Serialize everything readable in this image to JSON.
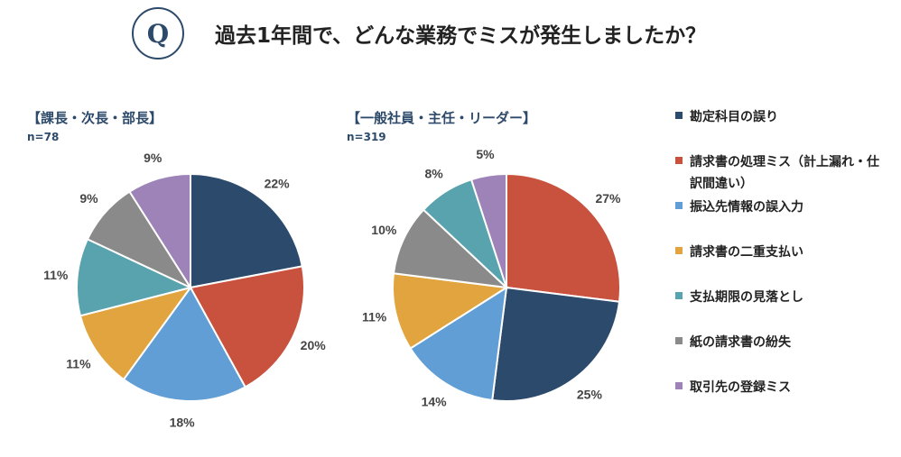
{
  "header": {
    "badge": "Q",
    "question": "過去1年間で、どんな業務でミスが発生しましたか？"
  },
  "colors": {
    "title": "#2d4a6b",
    "categories": [
      "#2c4a6c",
      "#c9523f",
      "#609ed5",
      "#e1a43e",
      "#58a3ad",
      "#8a8a8a",
      "#9d83b7"
    ]
  },
  "legend": {
    "items": [
      "勘定科目の誤り",
      "請求書の処理ミス（計上漏れ・仕訳間違い）",
      "振込先情報の誤入力",
      "請求書の二重支払い",
      "支払期限の見落とし",
      "紙の請求書の紛失",
      "取引先の登録ミス"
    ]
  },
  "chart_data": [
    {
      "type": "pie",
      "title": "【課長・次長・部長】",
      "subtitle": "n=78",
      "categories": [
        "勘定科目の誤り",
        "請求書の処理ミス（計上漏れ・仕訳間違い）",
        "振込先情報の誤入力",
        "請求書の二重支払い",
        "支払期限の見落とし",
        "紙の請求書の紛失",
        "取引先の登録ミス"
      ],
      "values": [
        22,
        20,
        18,
        11,
        11,
        9,
        9
      ],
      "labels": [
        "22%",
        "20%",
        "18%",
        "11%",
        "11%",
        "9%",
        "9%"
      ]
    },
    {
      "type": "pie",
      "title": "【一般社員・主任・リーダー】",
      "subtitle": "n=319",
      "categories": [
        "請求書の処理ミス（計上漏れ・仕訳間違い）",
        "勘定科目の誤り",
        "振込先情報の誤入力",
        "請求書の二重支払い",
        "紙の請求書の紛失",
        "支払期限の見落とし",
        "取引先の登録ミス"
      ],
      "values": [
        27,
        25,
        14,
        11,
        10,
        8,
        5
      ],
      "labels": [
        "27%",
        "25%",
        "14%",
        "11%",
        "10%",
        "8%",
        "5%"
      ]
    }
  ]
}
